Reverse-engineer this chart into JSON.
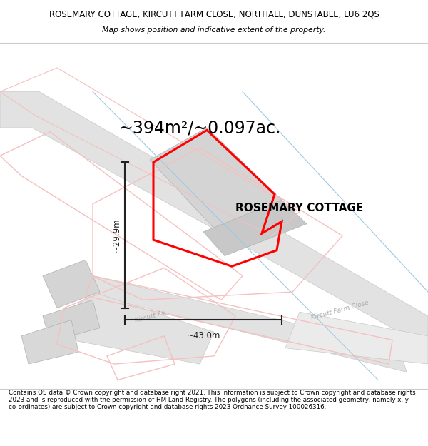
{
  "title_line1": "ROSEMARY COTTAGE, KIRCUTT FARM CLOSE, NORTHALL, DUNSTABLE, LU6 2QS",
  "title_line2": "Map shows position and indicative extent of the property.",
  "area_text": "~394m²/~0.097ac.",
  "property_label": "ROSEMARY COTTAGE",
  "dim_width": "~43.0m",
  "dim_height": "~29.9m",
  "footer_text": "Contains OS data © Crown copyright and database right 2021. This information is subject to Crown copyright and database rights 2023 and is reproduced with the permission of HM Land Registry. The polygons (including the associated geometry, namely x, y co-ordinates) are subject to Crown copyright and database rights 2023 Ordnance Survey 100026316.",
  "bg_color": "#ffffff",
  "red_color": "#ff0000",
  "gray_bldg": "#d4d4d4",
  "gray_bldg_edge": "#b0b0b0",
  "light_pink": "#f5c0c0",
  "road_gray": "#e2e2e2",
  "road_edge": "#c8c8c8",
  "blue_line": "#a0c8e0",
  "road_label": "#aaaaaa",
  "dim_color": "#222222"
}
